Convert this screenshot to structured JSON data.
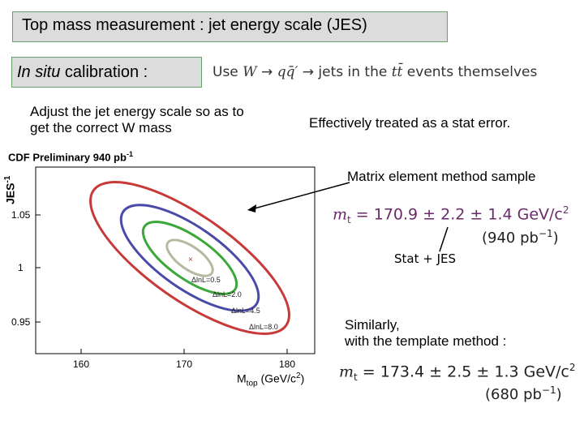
{
  "slide": {
    "title": "Top mass measurement : jet energy scale (JES)",
    "insitu_italic": "In situ",
    "insitu_rest": " calibration :",
    "use_prefix": "Use ",
    "use_W": "W",
    "use_arrow1": " → ",
    "use_qq": "qq̄′",
    "use_arrow2": " → ",
    "use_mid": "jets in the ",
    "use_tt": "tt̄",
    "use_suffix": " events themselves",
    "adjust_line1": "Adjust the jet energy scale so as to",
    "adjust_line2": "get the correct W mass",
    "stat_error": "Effectively treated as a stat error.",
    "me_label": "Matrix element method sample",
    "me_formula_var": "m",
    "me_formula_sub": "t",
    "me_formula_value": " = 170.9 ± 2.2 ± 1.4  GeV/c",
    "me_formula_sup": "2",
    "me_lumi": "(940 pb",
    "me_lumi_sup": "−1",
    "me_lumi_close": ")",
    "stat_jes": "Stat + JES",
    "similarly_line1": "Similarly,",
    "similarly_line2": "with the template method :",
    "tm_formula_var": "m",
    "tm_formula_sub": "t",
    "tm_formula_value": " = 173.4 ± 2.5 ± 1.3  GeV/c",
    "tm_formula_sup": "2",
    "tm_lumi": "(680 pb",
    "tm_lumi_sup": "−1",
    "tm_lumi_close": ")"
  },
  "plot": {
    "header": "CDF Preliminary 940 pb",
    "header_sup": "-1",
    "ylabel": "JES",
    "ylabel_sup": "-1",
    "xlabel": "M",
    "xlabel_sub": "top",
    "xlabel_unit": " (GeV/c",
    "xlabel_unit_sup": "2",
    "xlabel_close": ")",
    "x_ticks": [
      "160",
      "170",
      "180"
    ],
    "y_ticks": [
      "1.05",
      "1",
      "0.95"
    ],
    "contours": [
      {
        "label": "ΔlnL=0.5",
        "color": "#b8b8a0"
      },
      {
        "label": "ΔlnL=2.0",
        "color": "#3aa83a"
      },
      {
        "label": "ΔlnL=4.5",
        "color": "#4a4aa8"
      },
      {
        "label": "ΔlnL=8.0",
        "color": "#c83a3a"
      }
    ],
    "best_fit_marker": "×"
  }
}
